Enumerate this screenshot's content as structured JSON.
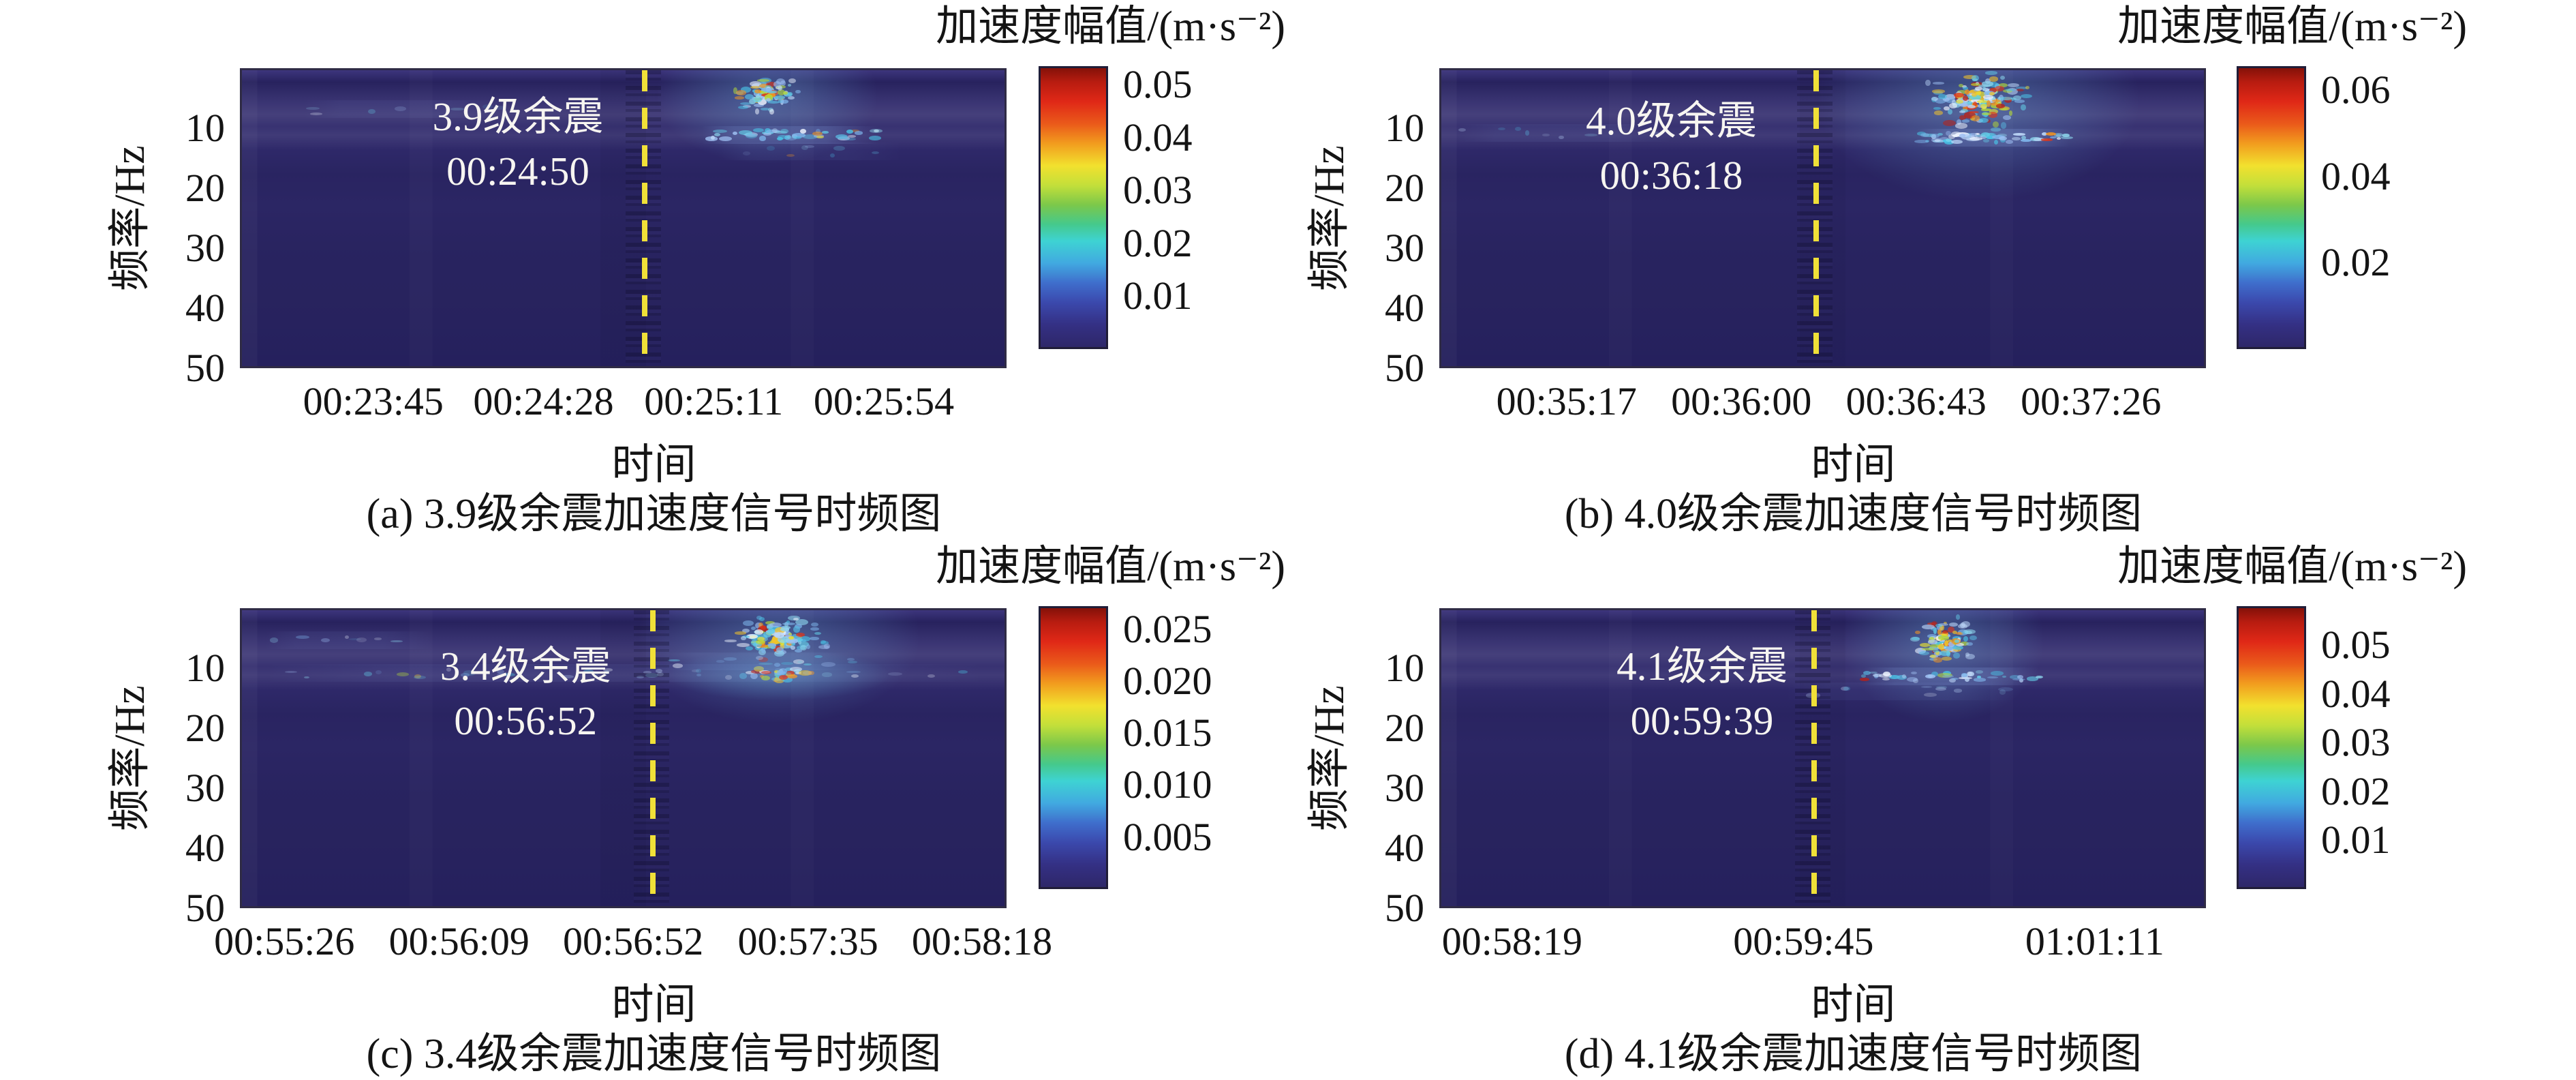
{
  "chart_data": [
    {
      "panel": "a",
      "type": "heatmap-spectrogram",
      "caption": "(a) 3.9级余震加速度信号时频图",
      "annotation": {
        "magnitude_label": "3.9级余震",
        "time_label": "00:24:50"
      },
      "axes": {
        "xlabel": "时间",
        "ylabel": "频率/Hz",
        "y_range": [
          0,
          50
        ],
        "x_ticks": [
          {
            "label": "00:23:45",
            "pos": 0.174
          },
          {
            "label": "00:24:28",
            "pos": 0.396
          },
          {
            "label": "00:25:11",
            "pos": 0.618
          },
          {
            "label": "00:25:54",
            "pos": 0.84
          }
        ],
        "y_ticks": [
          {
            "label": "10",
            "value": 10
          },
          {
            "label": "20",
            "value": 20
          },
          {
            "label": "30",
            "value": 30
          },
          {
            "label": "40",
            "value": 40
          },
          {
            "label": "50",
            "value": 50
          }
        ]
      },
      "colorbar": {
        "title": "加速度幅值/(m·s⁻²)",
        "vmin": 0,
        "vmax": 0.0535,
        "ticks": [
          {
            "label": "0.05",
            "value": 0.05
          },
          {
            "label": "0.04",
            "value": 0.04
          },
          {
            "label": "0.03",
            "value": 0.03
          },
          {
            "label": "0.02",
            "value": 0.02
          },
          {
            "label": "0.01",
            "value": 0.01
          }
        ]
      },
      "event_line_pos": 0.525,
      "annotation_x": 0.36,
      "annotation_top": 28,
      "column": "left",
      "seed": 101,
      "signal": {
        "clusters": [
          {
            "x": 0.685,
            "y": 0.085,
            "rx": 0.055,
            "ry": 0.075,
            "n": 80,
            "hot": 0.5
          }
        ],
        "bands": [
          {
            "y": 0.215,
            "x0": 0.6,
            "x1": 0.83,
            "n": 45,
            "a": 0.95
          },
          {
            "y": 0.13,
            "x0": 0.08,
            "x1": 0.35,
            "n": 7,
            "a": 0.3
          },
          {
            "y": 0.27,
            "x0": 0.62,
            "x1": 0.86,
            "n": 8,
            "a": 0.3
          }
        ]
      }
    },
    {
      "panel": "b",
      "type": "heatmap-spectrogram",
      "caption": "(b) 4.0级余震加速度信号时频图",
      "annotation": {
        "magnitude_label": "4.0级余震",
        "time_label": "00:36:18"
      },
      "axes": {
        "xlabel": "时间",
        "ylabel": "频率/Hz",
        "y_range": [
          0,
          50
        ],
        "x_ticks": [
          {
            "label": "00:35:17",
            "pos": 0.166
          },
          {
            "label": "00:36:00",
            "pos": 0.394
          },
          {
            "label": "00:36:43",
            "pos": 0.622
          },
          {
            "label": "00:37:26",
            "pos": 0.85
          }
        ],
        "y_ticks": [
          {
            "label": "10",
            "value": 10
          },
          {
            "label": "20",
            "value": 20
          },
          {
            "label": "30",
            "value": 30
          },
          {
            "label": "40",
            "value": 40
          },
          {
            "label": "50",
            "value": 50
          }
        ]
      },
      "colorbar": {
        "title": "加速度幅值/(m·s⁻²)",
        "vmin": 0,
        "vmax": 0.0655,
        "ticks": [
          {
            "label": "0.06",
            "value": 0.06
          },
          {
            "label": "0.04",
            "value": 0.04
          },
          {
            "label": "0.02",
            "value": 0.02
          }
        ]
      },
      "event_line_pos": 0.489,
      "annotation_x": 0.3,
      "annotation_top": 34,
      "column": "right",
      "seed": 202,
      "signal": {
        "clusters": [
          {
            "x": 0.7,
            "y": 0.1,
            "rx": 0.08,
            "ry": 0.11,
            "n": 160,
            "hot": 0.65
          }
        ],
        "bands": [
          {
            "y": 0.225,
            "x0": 0.62,
            "x1": 0.82,
            "n": 60,
            "a": 1.0
          },
          {
            "y": 0.21,
            "x0": 0.02,
            "x1": 0.3,
            "n": 8,
            "a": 0.35
          }
        ]
      }
    },
    {
      "panel": "c",
      "type": "heatmap-spectrogram",
      "caption": "(c) 3.4级余震加速度信号时频图",
      "annotation": {
        "magnitude_label": "3.4级余震",
        "time_label": "00:56:52"
      },
      "axes": {
        "xlabel": "时间",
        "ylabel": "频率/Hz",
        "y_range": [
          0,
          50
        ],
        "x_ticks": [
          {
            "label": "00:55:26",
            "pos": 0.058
          },
          {
            "label": "00:56:09",
            "pos": 0.286
          },
          {
            "label": "00:56:52",
            "pos": 0.513
          },
          {
            "label": "00:57:35",
            "pos": 0.741
          },
          {
            "label": "00:58:18",
            "pos": 0.968
          }
        ],
        "y_ticks": [
          {
            "label": "10",
            "value": 10
          },
          {
            "label": "20",
            "value": 20
          },
          {
            "label": "30",
            "value": 30
          },
          {
            "label": "40",
            "value": 40
          },
          {
            "label": "50",
            "value": 50
          }
        ]
      },
      "colorbar": {
        "title": "加速度幅值/(m·s⁻²)",
        "vmin": 0,
        "vmax": 0.0272,
        "ticks": [
          {
            "label": "0.025",
            "value": 0.025
          },
          {
            "label": "0.020",
            "value": 0.02
          },
          {
            "label": "0.015",
            "value": 0.015
          },
          {
            "label": "0.010",
            "value": 0.01
          },
          {
            "label": "0.005",
            "value": 0.005
          }
        ]
      },
      "event_line_pos": 0.536,
      "annotation_x": 0.37,
      "annotation_top": 42,
      "column": "left",
      "seed": 303,
      "signal": {
        "clusters": [
          {
            "x": 0.7,
            "y": 0.09,
            "rx": 0.07,
            "ry": 0.095,
            "n": 130,
            "hot": 0.55
          },
          {
            "x": 0.7,
            "y": 0.215,
            "rx": 0.055,
            "ry": 0.028,
            "n": 35,
            "hot": 0.7
          }
        ],
        "bands": [
          {
            "y": 0.21,
            "x0": 0.03,
            "x1": 0.97,
            "n": 36,
            "a": 0.4
          },
          {
            "y": 0.17,
            "x0": 0.55,
            "x1": 0.8,
            "n": 14,
            "a": 0.5
          },
          {
            "y": 0.1,
            "x0": 0.03,
            "x1": 0.25,
            "n": 8,
            "a": 0.35
          }
        ]
      }
    },
    {
      "panel": "d",
      "type": "heatmap-spectrogram",
      "caption": "(d) 4.1级余震加速度信号时频图",
      "annotation": {
        "magnitude_label": "4.1级余震",
        "time_label": "00:59:39"
      },
      "axes": {
        "xlabel": "时间",
        "ylabel": "频率/Hz",
        "y_range": [
          0,
          50
        ],
        "x_ticks": [
          {
            "label": "00:58:19",
            "pos": 0.095
          },
          {
            "label": "00:59:45",
            "pos": 0.475
          },
          {
            "label": "01:01:11",
            "pos": 0.855
          }
        ],
        "y_ticks": [
          {
            "label": "10",
            "value": 10
          },
          {
            "label": "20",
            "value": 20
          },
          {
            "label": "30",
            "value": 30
          },
          {
            "label": "40",
            "value": 40
          },
          {
            "label": "50",
            "value": 50
          }
        ]
      },
      "colorbar": {
        "title": "加速度幅值/(m·s⁻²)",
        "vmin": 0,
        "vmax": 0.058,
        "ticks": [
          {
            "label": "0.05",
            "value": 0.05
          },
          {
            "label": "0.04",
            "value": 0.04
          },
          {
            "label": "0.03",
            "value": 0.03
          },
          {
            "label": "0.02",
            "value": 0.02
          },
          {
            "label": "0.01",
            "value": 0.01
          }
        ]
      },
      "event_line_pos": 0.486,
      "annotation_x": 0.34,
      "annotation_top": 42,
      "column": "right",
      "seed": 404,
      "signal": {
        "clusters": [
          {
            "x": 0.655,
            "y": 0.1,
            "rx": 0.05,
            "ry": 0.09,
            "n": 95,
            "hot": 0.6
          }
        ],
        "bands": [
          {
            "y": 0.22,
            "x0": 0.55,
            "x1": 0.78,
            "n": 42,
            "a": 0.9
          },
          {
            "y": 0.27,
            "x0": 0.45,
            "x1": 0.75,
            "n": 10,
            "a": 0.35
          }
        ]
      }
    }
  ],
  "style": {
    "heatmap_background": "#302a6c",
    "event_line_color": "#f0e038",
    "annotation_color": "#f7f5f1",
    "colormap": "jet"
  }
}
